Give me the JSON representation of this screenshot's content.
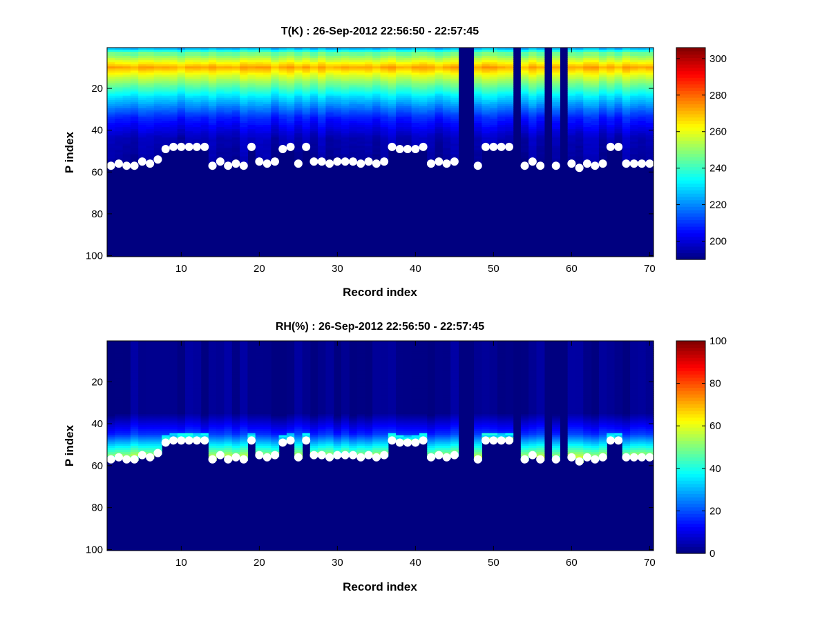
{
  "chart_data": [
    {
      "type": "heatmap",
      "title": "T(K) : 26-Sep-2012 22:56:50 - 22:57:45",
      "xlabel": "Record index",
      "ylabel": "P index",
      "xlim": [
        0.5,
        70.5
      ],
      "ylim": [
        0.5,
        100.5
      ],
      "y_reversed": true,
      "xticks": [
        10,
        20,
        30,
        40,
        50,
        60,
        70
      ],
      "yticks": [
        20,
        40,
        60,
        80,
        100
      ],
      "colorbar": {
        "range": [
          190,
          306
        ],
        "ticks": [
          200,
          220,
          240,
          260,
          280,
          300
        ],
        "colormap": "jet"
      },
      "columns": 70,
      "rows": 100,
      "missing_records": [
        46,
        47,
        53,
        57,
        59
      ],
      "cell_model": "temperature: peak ~272 K near P index 10, decreasing downward to ~195 K by P index 45, 190 K below the surface marker",
      "marker_color": "#ffffff",
      "surface_markers": [
        57,
        56,
        57,
        57,
        55,
        56,
        54,
        49,
        48,
        48,
        48,
        48,
        48,
        57,
        55,
        57,
        56,
        57,
        48,
        55,
        56,
        55,
        49,
        48,
        56,
        48,
        55,
        55,
        56,
        55,
        55,
        55,
        56,
        55,
        56,
        55,
        48,
        49,
        49,
        49,
        48,
        56,
        55,
        56,
        55,
        null,
        null,
        57,
        48,
        48,
        48,
        48,
        null,
        57,
        55,
        57,
        null,
        57,
        null,
        56,
        58,
        56,
        57,
        56,
        48,
        48,
        56,
        56,
        56,
        56
      ]
    },
    {
      "type": "heatmap",
      "title": "RH(%) : 26-Sep-2012 22:56:50 - 22:57:45",
      "xlabel": "Record index",
      "ylabel": "P index",
      "xlim": [
        0.5,
        70.5
      ],
      "ylim": [
        0.5,
        100.5
      ],
      "y_reversed": true,
      "xticks": [
        10,
        20,
        30,
        40,
        50,
        60,
        70
      ],
      "yticks": [
        20,
        40,
        60,
        80,
        100
      ],
      "colorbar": {
        "range": [
          0,
          100
        ],
        "ticks": [
          0,
          20,
          40,
          60,
          80,
          100
        ],
        "colormap": "jet"
      },
      "columns": 70,
      "rows": 100,
      "missing_records": [
        46,
        47,
        53,
        57,
        59
      ],
      "cell_model": "relative humidity: ~1% above P index 35, rising to 30-60% just above the surface marker, 0% below",
      "marker_color": "#ffffff",
      "surface_markers": [
        57,
        56,
        57,
        57,
        55,
        56,
        54,
        49,
        48,
        48,
        48,
        48,
        48,
        57,
        55,
        57,
        56,
        57,
        48,
        55,
        56,
        55,
        49,
        48,
        56,
        48,
        55,
        55,
        56,
        55,
        55,
        55,
        56,
        55,
        56,
        55,
        48,
        49,
        49,
        49,
        48,
        56,
        55,
        56,
        55,
        null,
        null,
        57,
        48,
        48,
        48,
        48,
        null,
        57,
        55,
        57,
        null,
        57,
        null,
        56,
        58,
        56,
        57,
        56,
        48,
        48,
        56,
        56,
        56,
        56
      ]
    }
  ]
}
